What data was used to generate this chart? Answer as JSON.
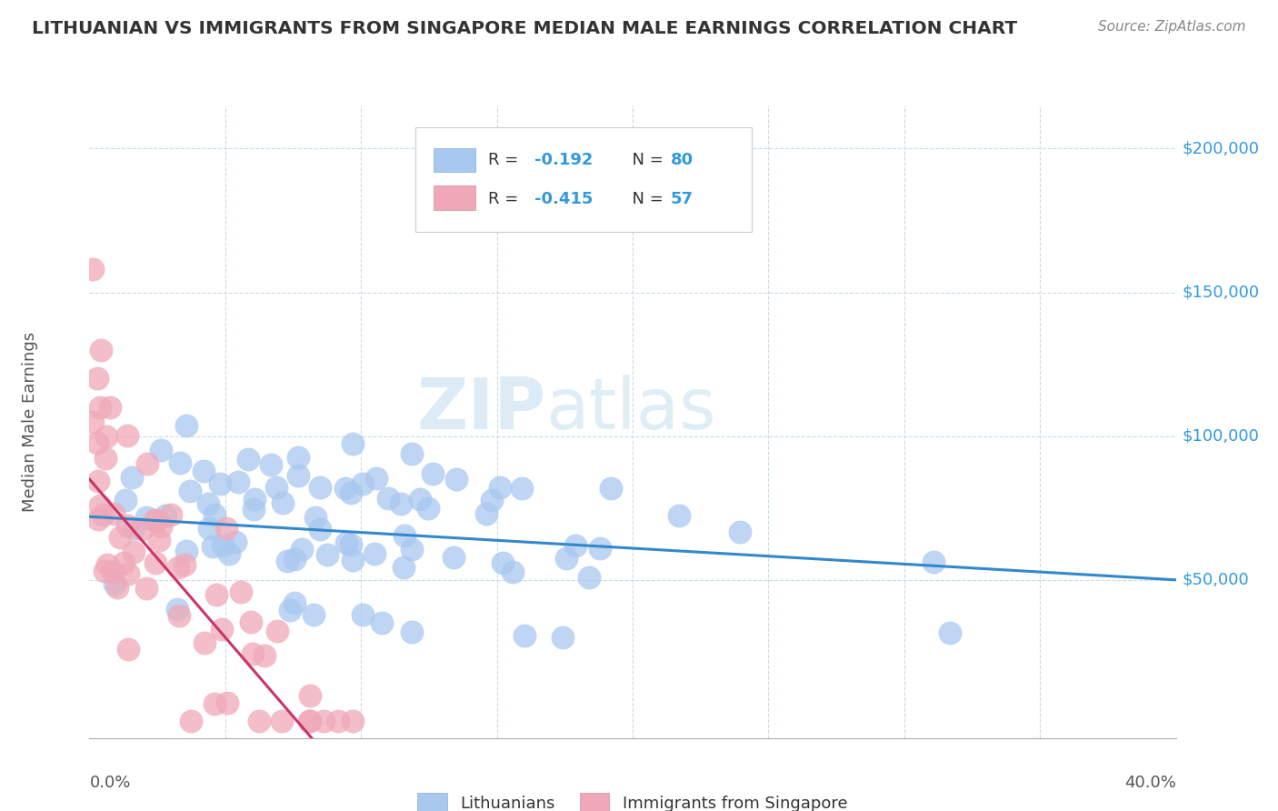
{
  "title": "LITHUANIAN VS IMMIGRANTS FROM SINGAPORE MEDIAN MALE EARNINGS CORRELATION CHART",
  "source": "Source: ZipAtlas.com",
  "ylabel": "Median Male Earnings",
  "color_blue": "#a8c8f0",
  "color_pink": "#f0a8b8",
  "color_blue_line": "#3388cc",
  "color_pink_line": "#cc3366",
  "color_title": "#404040",
  "color_source": "#888888",
  "color_ytick": "#3399dd",
  "color_grid": "#c8dce8",
  "watermark_color": "#cce4f0",
  "xmin": 0.0,
  "xmax": 0.4,
  "ymin": -5000,
  "ymax": 215000,
  "blue_r": -0.192,
  "blue_n": 80,
  "pink_r": -0.415,
  "pink_n": 57,
  "blue_intercept": 72000,
  "blue_slope": -55000,
  "pink_intercept": 85000,
  "pink_slope": -1100000,
  "blue_seed": 42,
  "pink_seed": 7
}
